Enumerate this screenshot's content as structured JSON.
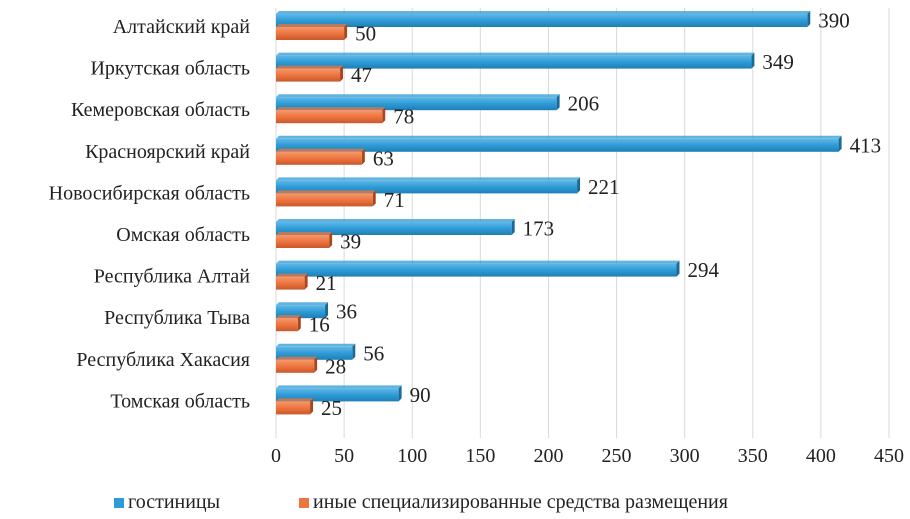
{
  "chart_data": {
    "type": "bar",
    "orientation": "horizontal",
    "title": "",
    "xlabel": "",
    "ylabel": "",
    "xlim": [
      0,
      450
    ],
    "x_ticks": [
      0,
      50,
      100,
      150,
      200,
      250,
      300,
      350,
      400,
      450
    ],
    "grid": true,
    "legend_position": "bottom",
    "categories": [
      "Алтайский край",
      "Иркутская область",
      "Кемеровская область",
      "Красноярский край",
      "Новосибирская область",
      "Омская область",
      "Республика Алтай",
      "Республика Тыва",
      "Республика Хакасия",
      "Томская область"
    ],
    "series": [
      {
        "name": "гостиницы",
        "color": "#2e9bd6",
        "values": [
          390,
          349,
          206,
          413,
          221,
          173,
          294,
          36,
          56,
          90
        ]
      },
      {
        "name": "иные специализированные средства размещения",
        "color": "#ee7540",
        "values": [
          50,
          47,
          78,
          63,
          71,
          39,
          21,
          16,
          28,
          25
        ]
      }
    ]
  }
}
